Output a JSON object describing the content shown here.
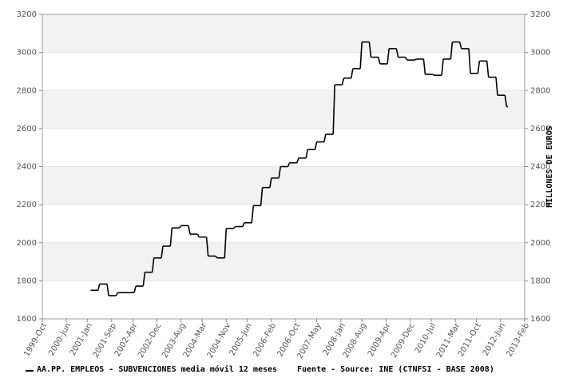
{
  "chart_data": {
    "type": "line",
    "x": [
      "2001-Feb",
      "2001-May",
      "2001-Aug",
      "2001-Nov",
      "2002-May",
      "2002-Aug",
      "2002-Nov",
      "2003-Feb",
      "2003-May",
      "2003-Aug",
      "2003-Nov",
      "2004-Feb",
      "2004-May",
      "2004-Aug",
      "2004-Nov",
      "2005-Feb",
      "2005-May",
      "2005-Aug",
      "2005-Nov",
      "2006-Feb",
      "2006-May",
      "2006-Aug",
      "2006-Nov",
      "2007-Feb",
      "2007-May",
      "2007-Aug",
      "2007-Nov",
      "2008-Feb",
      "2008-May",
      "2008-Aug",
      "2008-Nov",
      "2009-Feb",
      "2009-May",
      "2009-Aug",
      "2009-Nov",
      "2010-Feb",
      "2010-May",
      "2010-Aug",
      "2010-Nov",
      "2011-Feb",
      "2011-May",
      "2011-Aug",
      "2011-Nov",
      "2012-Feb",
      "2012-May",
      "2012-Aug"
    ],
    "series": [
      {
        "name": "AA.PP. EMPLEOS - SUBVENCIONES media móvil 12 meses",
        "color": "#000000",
        "values": [
          1750,
          1783,
          1722,
          1738,
          1772,
          1845,
          1920,
          1982,
          2078,
          2090,
          2045,
          2030,
          1930,
          1920,
          2075,
          2085,
          2105,
          2195,
          2290,
          2340,
          2400,
          2420,
          2445,
          2490,
          2530,
          2570,
          2830,
          2865,
          2915,
          3055,
          2975,
          2940,
          3020,
          2975,
          2960,
          2965,
          2885,
          2880,
          2965,
          3055,
          3020,
          2890,
          2955,
          2870,
          2775,
          2715
        ]
      }
    ],
    "xlim": [
      "1999-Oct",
      "2013-Feb"
    ],
    "xticks": [
      "1999-Oct",
      "2000-Jun",
      "2001-Jan",
      "2001-Sep",
      "2002-Apr",
      "2002-Dec",
      "2003-Aug",
      "2004-Mar",
      "2004-Nov",
      "2005-Jun",
      "2006-Feb",
      "2006-Oct",
      "2007-May",
      "2008-Jan",
      "2008-Aug",
      "2009-Apr",
      "2009-Dec",
      "2010-Jul",
      "2011-Mar",
      "2011-Oct",
      "2012-Jun",
      "2013-Feb"
    ],
    "ylim": [
      1600,
      3200
    ],
    "yticks": [
      1600,
      1800,
      2000,
      2200,
      2400,
      2600,
      2800,
      3000,
      3200
    ],
    "y2lim": [
      1600,
      3200
    ],
    "y2ticks": [
      1600,
      1800,
      2000,
      2200,
      2400,
      2600,
      2800,
      3000,
      3200
    ],
    "y2label": "MILLONES DE EUROS",
    "source": "Fuente - Source: INE (CTNFSI - BASE 2008)",
    "grid": true,
    "band_color": "#f2f2f2",
    "step": true
  }
}
